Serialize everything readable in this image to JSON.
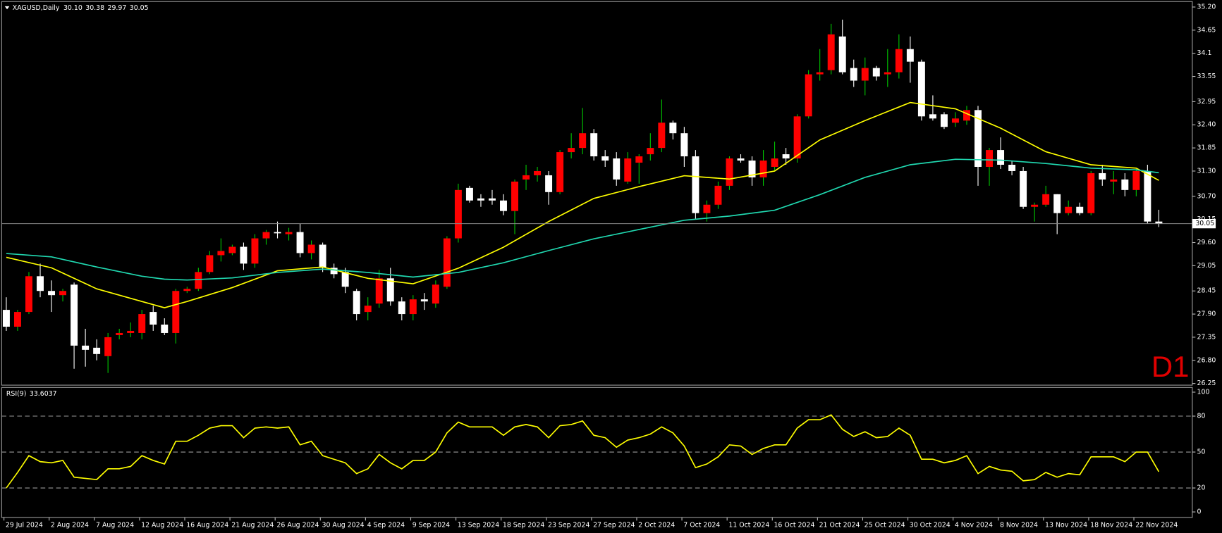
{
  "chart_data": {
    "type": "candlestick",
    "header": {
      "symbol": "XAGUSD,Daily",
      "ohlc_labels": [
        "30.10",
        "30.38",
        "29.97",
        "30.05"
      ]
    },
    "timeframe_label": "D1",
    "up_color": "#ff0000",
    "down_color": "#ffffff",
    "up_wick_color": "#00c800",
    "down_wick_color": "#ffffff",
    "ylim": [
      26.21,
      35.33
    ],
    "yticks": [
      {
        "value": 35.2,
        "label": "35.20"
      },
      34.65,
      34.1,
      33.55,
      32.95,
      {
        "value": 32.4,
        "label": "32.40"
      },
      31.85,
      {
        "value": 31.3,
        "label": "31.30"
      },
      {
        "value": 30.7,
        "label": "30.70"
      },
      30.15,
      {
        "value": 29.6,
        "label": "29.60"
      },
      29.05,
      28.45,
      {
        "value": 27.9,
        "label": "27.90"
      },
      27.35,
      {
        "value": 26.8,
        "label": "26.80"
      },
      26.25
    ],
    "current_price": {
      "value": 30.05,
      "label": "30.05"
    },
    "categories": [
      "29 Jul 2024",
      null,
      null,
      null,
      "2 Aug 2024",
      null,
      null,
      null,
      "7 Aug 2024",
      null,
      null,
      null,
      "12 Aug 2024",
      null,
      null,
      null,
      "16 Aug 2024",
      null,
      null,
      null,
      "21 Aug 2024",
      null,
      null,
      null,
      "26 Aug 2024",
      null,
      null,
      null,
      "30 Aug 2024",
      null,
      null,
      null,
      "4 Sep 2024",
      null,
      null,
      null,
      "9 Sep 2024",
      null,
      null,
      null,
      "13 Sep 2024",
      null,
      null,
      null,
      "18 Sep 2024",
      null,
      null,
      null,
      "23 Sep 2024",
      null,
      null,
      null,
      "27 Sep 2024",
      null,
      null,
      null,
      "2 Oct 2024",
      null,
      null,
      null,
      "7 Oct 2024",
      null,
      null,
      null,
      "11 Oct 2024",
      null,
      null,
      null,
      "16 Oct 2024",
      null,
      null,
      null,
      "21 Oct 2024",
      null,
      null,
      null,
      "25 Oct 2024",
      null,
      null,
      null,
      "30 Oct 2024",
      null,
      null,
      null,
      "4 Nov 2024",
      null,
      null,
      null,
      "8 Nov 2024",
      null,
      null,
      null,
      "13 Nov 2024",
      null,
      null,
      null,
      "18 Nov 2024",
      null,
      null,
      null,
      "22 Nov 2024",
      null,
      null
    ],
    "ohlc": [
      [
        28.0,
        28.3,
        27.5,
        27.6
      ],
      [
        27.6,
        28.0,
        27.5,
        27.95
      ],
      [
        27.95,
        28.9,
        27.9,
        28.8
      ],
      [
        28.8,
        29.1,
        28.3,
        28.45
      ],
      [
        28.45,
        28.7,
        27.95,
        28.35
      ],
      [
        28.35,
        28.5,
        28.2,
        28.45
      ],
      [
        28.6,
        28.65,
        26.6,
        27.15
      ],
      [
        27.15,
        27.55,
        26.65,
        27.05
      ],
      [
        27.1,
        27.3,
        26.8,
        26.95
      ],
      [
        26.9,
        27.45,
        26.5,
        27.35
      ],
      [
        27.4,
        27.55,
        27.3,
        27.45
      ],
      [
        27.45,
        27.7,
        27.35,
        27.5
      ],
      [
        27.45,
        28.0,
        27.3,
        27.9
      ],
      [
        27.95,
        28.1,
        27.5,
        27.65
      ],
      [
        27.65,
        27.8,
        27.4,
        27.45
      ],
      [
        27.45,
        28.5,
        27.2,
        28.45
      ],
      [
        28.45,
        28.55,
        28.4,
        28.5
      ],
      [
        28.5,
        29.0,
        28.45,
        28.9
      ],
      [
        28.9,
        29.4,
        28.85,
        29.3
      ],
      [
        29.3,
        29.7,
        29.15,
        29.4
      ],
      [
        29.35,
        29.55,
        29.3,
        29.5
      ],
      [
        29.5,
        29.6,
        28.95,
        29.1
      ],
      [
        29.1,
        29.8,
        29.0,
        29.7
      ],
      [
        29.7,
        29.9,
        29.55,
        29.85
      ],
      [
        29.85,
        30.1,
        29.7,
        29.82
      ],
      [
        29.8,
        29.95,
        29.65,
        29.85
      ],
      [
        29.85,
        30.05,
        29.25,
        29.35
      ],
      [
        29.35,
        29.65,
        29.2,
        29.55
      ],
      [
        29.55,
        29.6,
        28.9,
        29.0
      ],
      [
        29.0,
        29.1,
        28.75,
        28.85
      ],
      [
        28.9,
        29.0,
        28.4,
        28.55
      ],
      [
        28.45,
        28.5,
        27.75,
        27.9
      ],
      [
        27.95,
        28.3,
        27.75,
        28.1
      ],
      [
        28.15,
        28.95,
        28.05,
        28.75
      ],
      [
        28.75,
        29.0,
        28.1,
        28.2
      ],
      [
        28.2,
        28.3,
        27.75,
        27.9
      ],
      [
        27.9,
        28.35,
        27.75,
        28.25
      ],
      [
        28.25,
        28.4,
        28.0,
        28.2
      ],
      [
        28.15,
        28.7,
        28.05,
        28.6
      ],
      [
        28.55,
        29.75,
        28.5,
        29.7
      ],
      [
        29.7,
        31.0,
        29.6,
        30.85
      ],
      [
        30.9,
        30.95,
        30.55,
        30.6
      ],
      [
        30.65,
        30.75,
        30.45,
        30.6
      ],
      [
        30.65,
        30.85,
        30.5,
        30.6
      ],
      [
        30.6,
        30.75,
        30.25,
        30.35
      ],
      [
        30.35,
        31.1,
        29.8,
        31.05
      ],
      [
        31.1,
        31.45,
        30.85,
        31.2
      ],
      [
        31.2,
        31.4,
        31.05,
        31.3
      ],
      [
        31.2,
        31.3,
        30.5,
        30.8
      ],
      [
        30.8,
        31.8,
        30.75,
        31.75
      ],
      [
        31.75,
        32.2,
        31.6,
        31.85
      ],
      [
        31.85,
        32.8,
        31.7,
        32.2
      ],
      [
        32.2,
        32.3,
        31.55,
        31.65
      ],
      [
        31.65,
        31.8,
        31.4,
        31.55
      ],
      [
        31.6,
        31.75,
        30.95,
        31.1
      ],
      [
        31.05,
        31.75,
        31.0,
        31.6
      ],
      [
        31.5,
        31.7,
        31.0,
        31.65
      ],
      [
        31.7,
        32.2,
        31.55,
        31.85
      ],
      [
        31.85,
        33.0,
        31.75,
        32.45
      ],
      [
        32.45,
        32.5,
        32.05,
        32.2
      ],
      [
        32.2,
        32.35,
        31.4,
        31.65
      ],
      [
        31.65,
        31.8,
        30.15,
        30.3
      ],
      [
        30.3,
        30.6,
        30.1,
        30.5
      ],
      [
        30.5,
        31.05,
        30.4,
        30.95
      ],
      [
        30.95,
        31.65,
        30.85,
        31.6
      ],
      [
        31.6,
        31.7,
        31.5,
        31.55
      ],
      [
        31.55,
        31.65,
        30.95,
        31.15
      ],
      [
        31.15,
        31.8,
        30.95,
        31.55
      ],
      [
        31.4,
        32.0,
        31.3,
        31.6
      ],
      [
        31.7,
        31.85,
        31.45,
        31.6
      ],
      [
        31.6,
        32.65,
        31.5,
        32.6
      ],
      [
        32.6,
        33.7,
        32.55,
        33.6
      ],
      [
        33.6,
        34.2,
        33.45,
        33.65
      ],
      [
        33.7,
        34.8,
        33.6,
        34.55
      ],
      [
        34.5,
        34.9,
        33.6,
        33.65
      ],
      [
        33.75,
        33.95,
        33.3,
        33.45
      ],
      [
        33.45,
        34.0,
        33.1,
        33.75
      ],
      [
        33.75,
        33.8,
        33.45,
        33.55
      ],
      [
        33.6,
        34.2,
        33.3,
        33.65
      ],
      [
        33.65,
        34.55,
        33.5,
        34.2
      ],
      [
        34.2,
        34.5,
        33.4,
        33.9
      ],
      [
        33.9,
        33.95,
        32.5,
        32.6
      ],
      [
        32.65,
        33.1,
        32.5,
        32.55
      ],
      [
        32.65,
        32.7,
        32.3,
        32.35
      ],
      [
        32.45,
        32.7,
        32.35,
        32.55
      ],
      [
        32.5,
        32.85,
        32.4,
        32.75
      ],
      [
        32.75,
        32.85,
        30.95,
        31.4
      ],
      [
        31.4,
        31.85,
        30.95,
        31.8
      ],
      [
        31.8,
        32.1,
        31.35,
        31.45
      ],
      [
        31.45,
        31.55,
        31.2,
        31.3
      ],
      [
        31.3,
        31.4,
        30.4,
        30.45
      ],
      [
        30.45,
        30.55,
        30.1,
        30.5
      ],
      [
        30.5,
        30.95,
        30.45,
        30.75
      ],
      [
        30.75,
        30.75,
        29.8,
        30.3
      ],
      [
        30.3,
        30.6,
        30.25,
        30.45
      ],
      [
        30.45,
        30.55,
        30.25,
        30.3
      ],
      [
        30.3,
        31.3,
        30.25,
        31.25
      ],
      [
        31.25,
        31.45,
        30.95,
        31.1
      ],
      [
        31.05,
        31.3,
        30.75,
        31.1
      ],
      [
        31.1,
        31.25,
        30.7,
        30.85
      ],
      [
        30.85,
        31.35,
        30.7,
        31.3
      ],
      [
        31.3,
        31.45,
        30.05,
        30.1
      ],
      [
        30.1,
        30.38,
        29.97,
        30.05
      ]
    ],
    "overlays": [
      {
        "color": "#ffff00",
        "x": [
          0,
          4,
          8,
          12,
          14,
          16,
          20,
          24,
          28,
          32,
          36,
          40,
          44,
          48,
          52,
          56,
          60,
          64,
          68,
          72,
          76,
          80,
          84,
          88,
          92,
          96,
          100,
          102
        ],
        "values": [
          29.25,
          29.0,
          28.5,
          28.2,
          28.05,
          28.2,
          28.53,
          28.93,
          29.02,
          28.75,
          28.62,
          28.99,
          29.49,
          30.1,
          30.65,
          30.93,
          31.19,
          31.11,
          31.3,
          32.04,
          32.5,
          32.93,
          32.78,
          32.32,
          31.76,
          31.45,
          31.37,
          31.08
        ]
      },
      {
        "color": "#20d8b0",
        "x": [
          0,
          4,
          8,
          12,
          14,
          16,
          20,
          24,
          28,
          32,
          36,
          40,
          44,
          48,
          52,
          56,
          60,
          64,
          68,
          72,
          76,
          80,
          84,
          88,
          92,
          96,
          100,
          102
        ],
        "values": [
          29.34,
          29.26,
          29.02,
          28.8,
          28.73,
          28.71,
          28.76,
          28.89,
          28.97,
          28.89,
          28.78,
          28.89,
          29.12,
          29.41,
          29.69,
          29.91,
          30.13,
          30.23,
          30.37,
          30.74,
          31.15,
          31.45,
          31.58,
          31.56,
          31.48,
          31.37,
          31.33,
          31.26
        ]
      }
    ],
    "rsi": {
      "title": "RSI(9)",
      "color": "#ffff00",
      "ylim": [
        -4.6,
        103.9
      ],
      "yticks": [
        100,
        80,
        50,
        20,
        0
      ],
      "levels": [
        80,
        50,
        20
      ],
      "values": [
        20,
        33,
        47,
        42,
        41,
        43,
        29,
        28,
        27,
        36,
        36,
        38,
        47,
        43,
        40,
        59,
        59,
        64,
        70,
        72,
        72,
        62,
        70,
        71,
        70,
        71,
        56,
        59,
        47,
        44,
        41,
        32,
        36,
        48,
        41,
        36,
        43,
        43,
        50,
        66,
        75,
        71,
        71,
        71,
        64,
        71,
        73,
        71,
        62,
        72,
        73,
        76,
        64,
        62,
        54,
        60,
        62,
        65,
        71,
        66,
        55,
        37,
        40,
        46,
        56,
        55,
        48,
        53,
        56,
        56,
        70,
        77,
        77,
        81,
        69,
        63,
        67,
        62,
        63,
        70,
        64,
        44,
        44,
        41,
        43,
        47,
        32,
        38,
        35,
        34,
        26,
        27,
        33,
        29,
        32,
        31,
        46,
        46,
        46,
        42,
        50,
        50,
        33.6037
      ]
    }
  }
}
